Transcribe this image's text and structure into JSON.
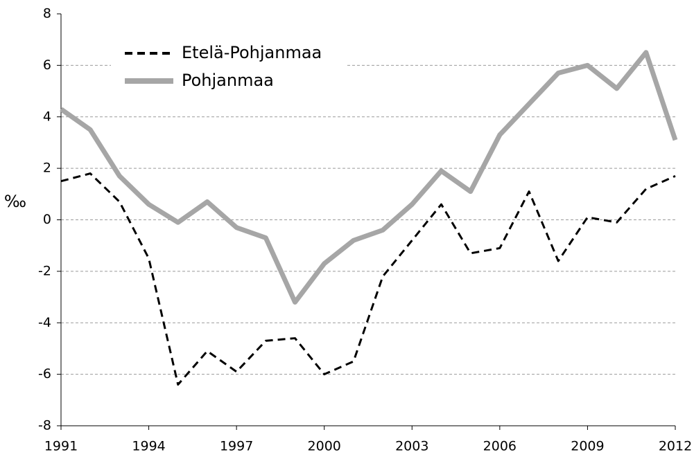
{
  "chart_data": {
    "type": "line",
    "ylabel": "‰",
    "x": [
      1991,
      1992,
      1993,
      1994,
      1995,
      1996,
      1997,
      1998,
      1999,
      2000,
      2001,
      2002,
      2003,
      2004,
      2005,
      2006,
      2007,
      2008,
      2009,
      2010,
      2011,
      2012
    ],
    "series": [
      {
        "name": "Etelä-Pohjanmaa",
        "color": "#000000",
        "dash": true,
        "values": [
          1.5,
          1.8,
          0.7,
          -1.5,
          -6.4,
          -5.1,
          -5.9,
          -4.7,
          -4.6,
          -6.0,
          -5.5,
          -2.2,
          -0.8,
          0.6,
          -1.3,
          -1.1,
          1.1,
          -1.6,
          0.1,
          -0.1,
          1.2,
          1.7
        ]
      },
      {
        "name": "Pohjanmaa",
        "color": "#a6a6a6",
        "dash": false,
        "values": [
          4.3,
          3.5,
          1.7,
          0.6,
          -0.1,
          0.7,
          -0.3,
          -0.7,
          -3.2,
          -1.7,
          -0.8,
          -0.4,
          0.6,
          1.9,
          1.1,
          3.3,
          4.5,
          5.7,
          6.0,
          5.1,
          6.5,
          3.1
        ]
      }
    ],
    "xlim": [
      1991,
      2012
    ],
    "xticks": [
      1991,
      1994,
      1997,
      2000,
      2003,
      2006,
      2009,
      2012
    ],
    "ylim": [
      -8,
      8
    ],
    "yticks": [
      -8,
      -6,
      -4,
      -2,
      0,
      2,
      4,
      6,
      8
    ],
    "grid": true,
    "legend": "upper left"
  }
}
